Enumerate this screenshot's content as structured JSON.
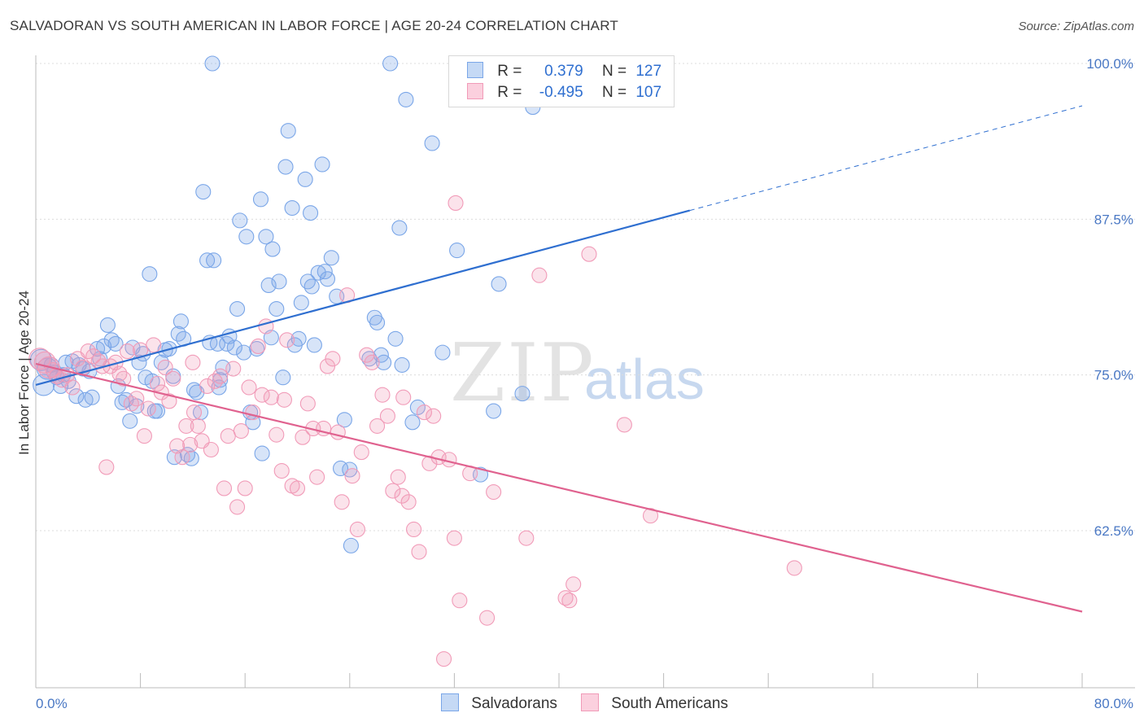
{
  "title": "SALVADORAN VS SOUTH AMERICAN IN LABOR FORCE | AGE 20-24 CORRELATION CHART",
  "source": "Source: ZipAtlas.com",
  "watermark": {
    "zip": "ZIP",
    "atlas": "atlas"
  },
  "legend": {
    "rows": [
      {
        "r_label": "R =",
        "r_value": "0.379",
        "n_label": "N =",
        "n_value": "127",
        "color": "#7aa6e8"
      },
      {
        "r_label": "R =",
        "r_value": "-0.495",
        "n_label": "N =",
        "n_value": "107",
        "color": "#f19bb8"
      }
    ]
  },
  "bottom_legend": [
    {
      "label": "Salvadorans",
      "color": "#7aa6e8"
    },
    {
      "label": "South Americans",
      "color": "#f19bb8"
    }
  ],
  "chart_data": {
    "type": "scatter",
    "title": "SALVADORAN VS SOUTH AMERICAN IN LABOR FORCE | AGE 20-24 CORRELATION CHART",
    "xlabel": "",
    "ylabel": "In Labor Force | Age 20-24",
    "xlim": [
      0,
      80
    ],
    "ylim": [
      50,
      101
    ],
    "x_tick_labels": [
      "0.0%",
      "80.0%"
    ],
    "y_ticks": [
      62.5,
      75.0,
      87.5,
      100.0
    ],
    "y_tick_labels": [
      "62.5%",
      "75.0%",
      "87.5%",
      "100.0%"
    ],
    "grid": "horizontal dashed",
    "legend_placement": "top-center",
    "series": [
      {
        "name": "Salvadorans",
        "color": "#7aa6e8",
        "line_color": "#2f6fd0",
        "trend": {
          "x": [
            0,
            50
          ],
          "y": [
            74.2,
            88.2
          ],
          "dashed_extension": {
            "x": [
              50,
              80
            ],
            "y": [
              88.2,
              96.6
            ]
          }
        },
        "points": [
          [
            0.4,
            76.2
          ],
          [
            0.6,
            74.2
          ],
          [
            0.9,
            75.5
          ],
          [
            1.2,
            75.8
          ],
          [
            1.4,
            75.2
          ],
          [
            1.6,
            74.8
          ],
          [
            1.9,
            74.1
          ],
          [
            2.1,
            75.0
          ],
          [
            2.3,
            76.0
          ],
          [
            2.5,
            74.5
          ],
          [
            2.8,
            76.1
          ],
          [
            3.1,
            73.3
          ],
          [
            3.3,
            75.8
          ],
          [
            3.6,
            75.5
          ],
          [
            3.8,
            73.0
          ],
          [
            4.1,
            75.3
          ],
          [
            4.3,
            73.2
          ],
          [
            4.7,
            77.1
          ],
          [
            4.9,
            76.3
          ],
          [
            5.2,
            77.3
          ],
          [
            5.5,
            79.0
          ],
          [
            5.8,
            77.8
          ],
          [
            6.1,
            77.5
          ],
          [
            6.3,
            74.1
          ],
          [
            6.6,
            72.8
          ],
          [
            6.9,
            73.0
          ],
          [
            7.2,
            71.3
          ],
          [
            7.4,
            77.2
          ],
          [
            7.7,
            72.5
          ],
          [
            7.9,
            76.0
          ],
          [
            8.2,
            76.7
          ],
          [
            8.4,
            74.8
          ],
          [
            8.7,
            83.1
          ],
          [
            8.9,
            74.5
          ],
          [
            9.1,
            72.1
          ],
          [
            9.3,
            72.1
          ],
          [
            9.6,
            76.0
          ],
          [
            9.9,
            77.0
          ],
          [
            10.2,
            77.1
          ],
          [
            10.5,
            74.9
          ],
          [
            10.6,
            68.4
          ],
          [
            10.9,
            78.3
          ],
          [
            11.1,
            79.3
          ],
          [
            11.3,
            77.9
          ],
          [
            11.6,
            68.6
          ],
          [
            11.9,
            68.3
          ],
          [
            12.1,
            73.8
          ],
          [
            12.3,
            73.6
          ],
          [
            12.6,
            72.0
          ],
          [
            12.8,
            89.7
          ],
          [
            13.1,
            84.2
          ],
          [
            13.3,
            77.6
          ],
          [
            13.6,
            84.2
          ],
          [
            13.9,
            77.5
          ],
          [
            14.1,
            74.6
          ],
          [
            14.3,
            75.6
          ],
          [
            14.6,
            77.5
          ],
          [
            14.8,
            78.1
          ],
          [
            15.2,
            77.2
          ],
          [
            15.4,
            80.3
          ],
          [
            15.6,
            87.4
          ],
          [
            15.9,
            76.8
          ],
          [
            16.1,
            86.1
          ],
          [
            16.4,
            72.0
          ],
          [
            16.6,
            71.2
          ],
          [
            16.9,
            77.1
          ],
          [
            17.2,
            89.1
          ],
          [
            17.3,
            68.7
          ],
          [
            17.6,
            86.1
          ],
          [
            17.8,
            82.2
          ],
          [
            18.1,
            85.1
          ],
          [
            18.4,
            80.3
          ],
          [
            18.6,
            82.5
          ],
          [
            18.9,
            74.8
          ],
          [
            19.1,
            91.7
          ],
          [
            19.3,
            94.6
          ],
          [
            19.6,
            88.4
          ],
          [
            19.8,
            77.4
          ],
          [
            20.1,
            77.9
          ],
          [
            20.3,
            80.8
          ],
          [
            20.6,
            90.7
          ],
          [
            20.8,
            82.5
          ],
          [
            21.1,
            82.1
          ],
          [
            21.3,
            77.4
          ],
          [
            21.6,
            83.2
          ],
          [
            21.9,
            91.9
          ],
          [
            22.1,
            83.3
          ],
          [
            22.3,
            82.7
          ],
          [
            22.6,
            84.4
          ],
          [
            23.0,
            81.3
          ],
          [
            23.3,
            67.5
          ],
          [
            23.6,
            71.4
          ],
          [
            24.0,
            67.4
          ],
          [
            24.1,
            61.3
          ],
          [
            25.5,
            76.3
          ],
          [
            25.9,
            79.6
          ],
          [
            26.1,
            79.2
          ],
          [
            26.4,
            76.6
          ],
          [
            26.6,
            76.0
          ],
          [
            27.1,
            100.0
          ],
          [
            27.5,
            77.9
          ],
          [
            27.8,
            86.8
          ],
          [
            28.0,
            75.8
          ],
          [
            28.3,
            97.1
          ],
          [
            28.8,
            71.2
          ],
          [
            29.2,
            72.4
          ],
          [
            30.3,
            93.6
          ],
          [
            31.1,
            76.8
          ],
          [
            32.2,
            85.0
          ],
          [
            34.0,
            67.0
          ],
          [
            35.0,
            72.1
          ],
          [
            35.4,
            82.3
          ],
          [
            37.2,
            73.5
          ],
          [
            38.0,
            96.5
          ],
          [
            39.4,
            97.4
          ],
          [
            40.6,
            100.0
          ],
          [
            13.5,
            100.0
          ],
          [
            14.0,
            74.0
          ],
          [
            18.0,
            78.0
          ],
          [
            21.0,
            88.0
          ]
        ]
      },
      {
        "name": "South Americans",
        "color": "#f19bb8",
        "line_color": "#e0628f",
        "trend": {
          "x": [
            0,
            80
          ],
          "y": [
            75.9,
            56.0
          ]
        },
        "points": [
          [
            0.3,
            76.3
          ],
          [
            0.7,
            76.0
          ],
          [
            1.0,
            75.6
          ],
          [
            1.3,
            75.4
          ],
          [
            1.6,
            74.9
          ],
          [
            2.0,
            74.6
          ],
          [
            2.4,
            75.0
          ],
          [
            2.8,
            74.0
          ],
          [
            3.2,
            76.3
          ],
          [
            3.6,
            75.6
          ],
          [
            4.0,
            76.9
          ],
          [
            4.4,
            76.5
          ],
          [
            4.8,
            76.1
          ],
          [
            5.1,
            75.7
          ],
          [
            5.4,
            67.6
          ],
          [
            5.7,
            75.7
          ],
          [
            6.1,
            76.0
          ],
          [
            6.4,
            75.1
          ],
          [
            6.7,
            74.7
          ],
          [
            7.0,
            76.9
          ],
          [
            7.3,
            72.7
          ],
          [
            7.7,
            73.1
          ],
          [
            8.0,
            77.0
          ],
          [
            8.3,
            70.1
          ],
          [
            8.6,
            72.3
          ],
          [
            9.0,
            77.4
          ],
          [
            9.3,
            74.3
          ],
          [
            9.6,
            73.6
          ],
          [
            9.9,
            75.6
          ],
          [
            10.2,
            72.9
          ],
          [
            10.5,
            74.7
          ],
          [
            10.8,
            69.3
          ],
          [
            11.2,
            68.4
          ],
          [
            11.5,
            70.9
          ],
          [
            11.8,
            69.4
          ],
          [
            12.1,
            72.0
          ],
          [
            12.4,
            70.9
          ],
          [
            12.7,
            69.7
          ],
          [
            13.1,
            74.1
          ],
          [
            13.4,
            69.0
          ],
          [
            13.7,
            74.5
          ],
          [
            14.1,
            74.9
          ],
          [
            14.4,
            65.9
          ],
          [
            14.7,
            70.1
          ],
          [
            15.1,
            75.5
          ],
          [
            15.4,
            64.4
          ],
          [
            15.7,
            70.5
          ],
          [
            16.0,
            65.9
          ],
          [
            16.3,
            74.0
          ],
          [
            16.6,
            72.0
          ],
          [
            17.0,
            77.3
          ],
          [
            17.3,
            73.4
          ],
          [
            17.6,
            78.9
          ],
          [
            18.0,
            73.2
          ],
          [
            18.4,
            70.2
          ],
          [
            18.8,
            67.3
          ],
          [
            19.2,
            77.8
          ],
          [
            19.6,
            66.1
          ],
          [
            20.0,
            65.9
          ],
          [
            20.4,
            70.0
          ],
          [
            20.8,
            72.7
          ],
          [
            21.2,
            70.7
          ],
          [
            21.5,
            66.8
          ],
          [
            22.0,
            70.7
          ],
          [
            22.3,
            75.7
          ],
          [
            22.7,
            76.3
          ],
          [
            23.1,
            70.4
          ],
          [
            23.4,
            64.8
          ],
          [
            23.8,
            81.4
          ],
          [
            24.2,
            66.9
          ],
          [
            24.6,
            62.6
          ],
          [
            24.9,
            68.8
          ],
          [
            25.3,
            76.6
          ],
          [
            25.7,
            76.0
          ],
          [
            26.1,
            70.9
          ],
          [
            26.5,
            73.4
          ],
          [
            26.9,
            71.7
          ],
          [
            27.3,
            65.7
          ],
          [
            27.7,
            66.8
          ],
          [
            28.1,
            73.2
          ],
          [
            28.5,
            64.8
          ],
          [
            28.9,
            62.6
          ],
          [
            29.3,
            60.8
          ],
          [
            29.7,
            72.0
          ],
          [
            30.1,
            67.9
          ],
          [
            30.4,
            71.7
          ],
          [
            30.8,
            68.4
          ],
          [
            31.2,
            52.2
          ],
          [
            31.6,
            68.2
          ],
          [
            32.0,
            61.9
          ],
          [
            32.4,
            56.9
          ],
          [
            33.2,
            67.1
          ],
          [
            34.5,
            55.5
          ],
          [
            35.0,
            65.6
          ],
          [
            37.5,
            61.9
          ],
          [
            38.5,
            83.0
          ],
          [
            40.5,
            57.1
          ],
          [
            40.8,
            56.9
          ],
          [
            41.1,
            58.2
          ],
          [
            42.3,
            84.7
          ],
          [
            45.0,
            71.0
          ],
          [
            47.0,
            63.7
          ],
          [
            58.0,
            59.5
          ],
          [
            32.1,
            88.8
          ],
          [
            28.0,
            65.3
          ],
          [
            19.0,
            73.0
          ],
          [
            12.0,
            76.0
          ]
        ]
      }
    ]
  }
}
